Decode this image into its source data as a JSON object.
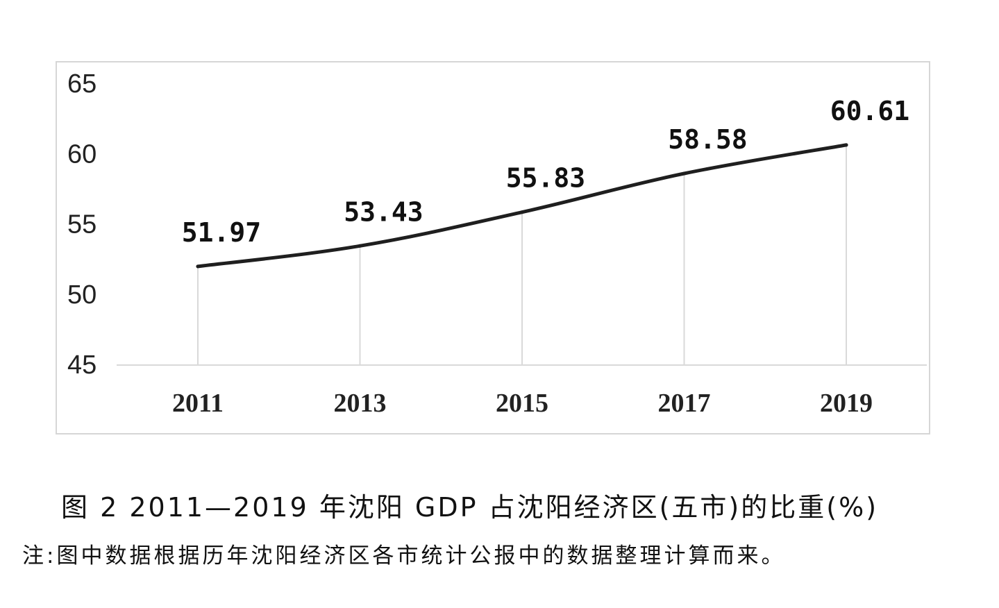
{
  "chart_data": {
    "type": "line",
    "categories": [
      "2011",
      "2013",
      "2015",
      "2017",
      "2019"
    ],
    "values": [
      51.97,
      53.43,
      55.83,
      58.58,
      60.61
    ],
    "data_labels": [
      "51.97",
      "53.43",
      "55.83",
      "58.58",
      "60.61"
    ],
    "yticks": [
      "45",
      "50",
      "55",
      "60",
      "65"
    ],
    "ylim": [
      45,
      65
    ],
    "title": "",
    "xlabel": "",
    "ylabel": "",
    "grid": "vertical drop lines at each category",
    "legend": "none",
    "line_color": "#1f1f1f",
    "gridline_color": "#d9d9d9"
  },
  "caption": "图 2  2011—2019 年沈阳 GDP 占沈阳经济区(五市)的比重(%)",
  "note": "注:图中数据根据历年沈阳经济区各市统计公报中的数据整理计算而来。"
}
